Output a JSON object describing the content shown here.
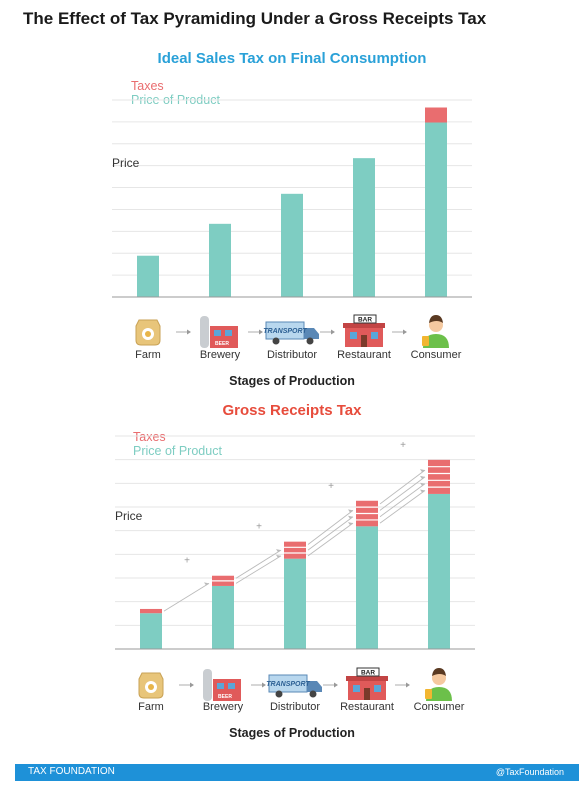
{
  "title": "The Effect of Tax Pyramiding Under a Gross Receipts Tax",
  "colors": {
    "product": "#7ecdc2",
    "tax": "#e96d6f",
    "header_blue": "#2aa1d8",
    "header_red": "#e74c3c",
    "footer": "#1e91d8"
  },
  "stages": [
    {
      "label": "Farm",
      "icon": "grain-sack-icon"
    },
    {
      "label": "Brewery",
      "icon": "brewery-icon",
      "icon_text": "BEER"
    },
    {
      "label": "Distributor",
      "icon": "truck-icon",
      "icon_text": "TRANSPORT"
    },
    {
      "label": "Restaurant",
      "icon": "bar-building-icon",
      "icon_text": "BAR"
    },
    {
      "label": "Consumer",
      "icon": "person-icon"
    }
  ],
  "chart_data": [
    {
      "type": "bar",
      "title": "Ideal Sales Tax on Final Consumption",
      "ylabel": "Price",
      "xlabel": "Stages of Production",
      "legend": [
        "Taxes",
        "Price of Product"
      ],
      "legend_position": "top-left",
      "categories": [
        "Farm",
        "Brewery",
        "Distributor",
        "Restaurant",
        "Consumer"
      ],
      "series": [
        {
          "name": "Price of Product",
          "values": [
            2.2,
            3.9,
            5.5,
            7.4,
            9.3
          ]
        },
        {
          "name": "Taxes",
          "values": [
            0,
            0,
            0,
            0,
            0.8
          ]
        }
      ],
      "ylim": [
        0,
        10.5
      ],
      "grid": true
    },
    {
      "type": "bar",
      "title": "Gross Receipts Tax",
      "ylabel": "Price",
      "xlabel": "Stages of Production",
      "legend": [
        "Taxes",
        "Price of Product"
      ],
      "legend_position": "top-left",
      "categories": [
        "Farm",
        "Brewery",
        "Distributor",
        "Restaurant",
        "Consumer"
      ],
      "series": [
        {
          "name": "Price of Product",
          "values": [
            2.1,
            3.7,
            5.3,
            7.2,
            9.1
          ]
        },
        {
          "name": "Taxes",
          "values": [
            0.25,
            0.6,
            1.0,
            1.5,
            2.0
          ]
        }
      ],
      "tax_layers": [
        1,
        2,
        3,
        4,
        5
      ],
      "ylim": [
        0,
        12.5
      ],
      "grid": true
    }
  ],
  "footer": {
    "left": "TAX FOUNDATION",
    "right": "@TaxFoundation"
  }
}
